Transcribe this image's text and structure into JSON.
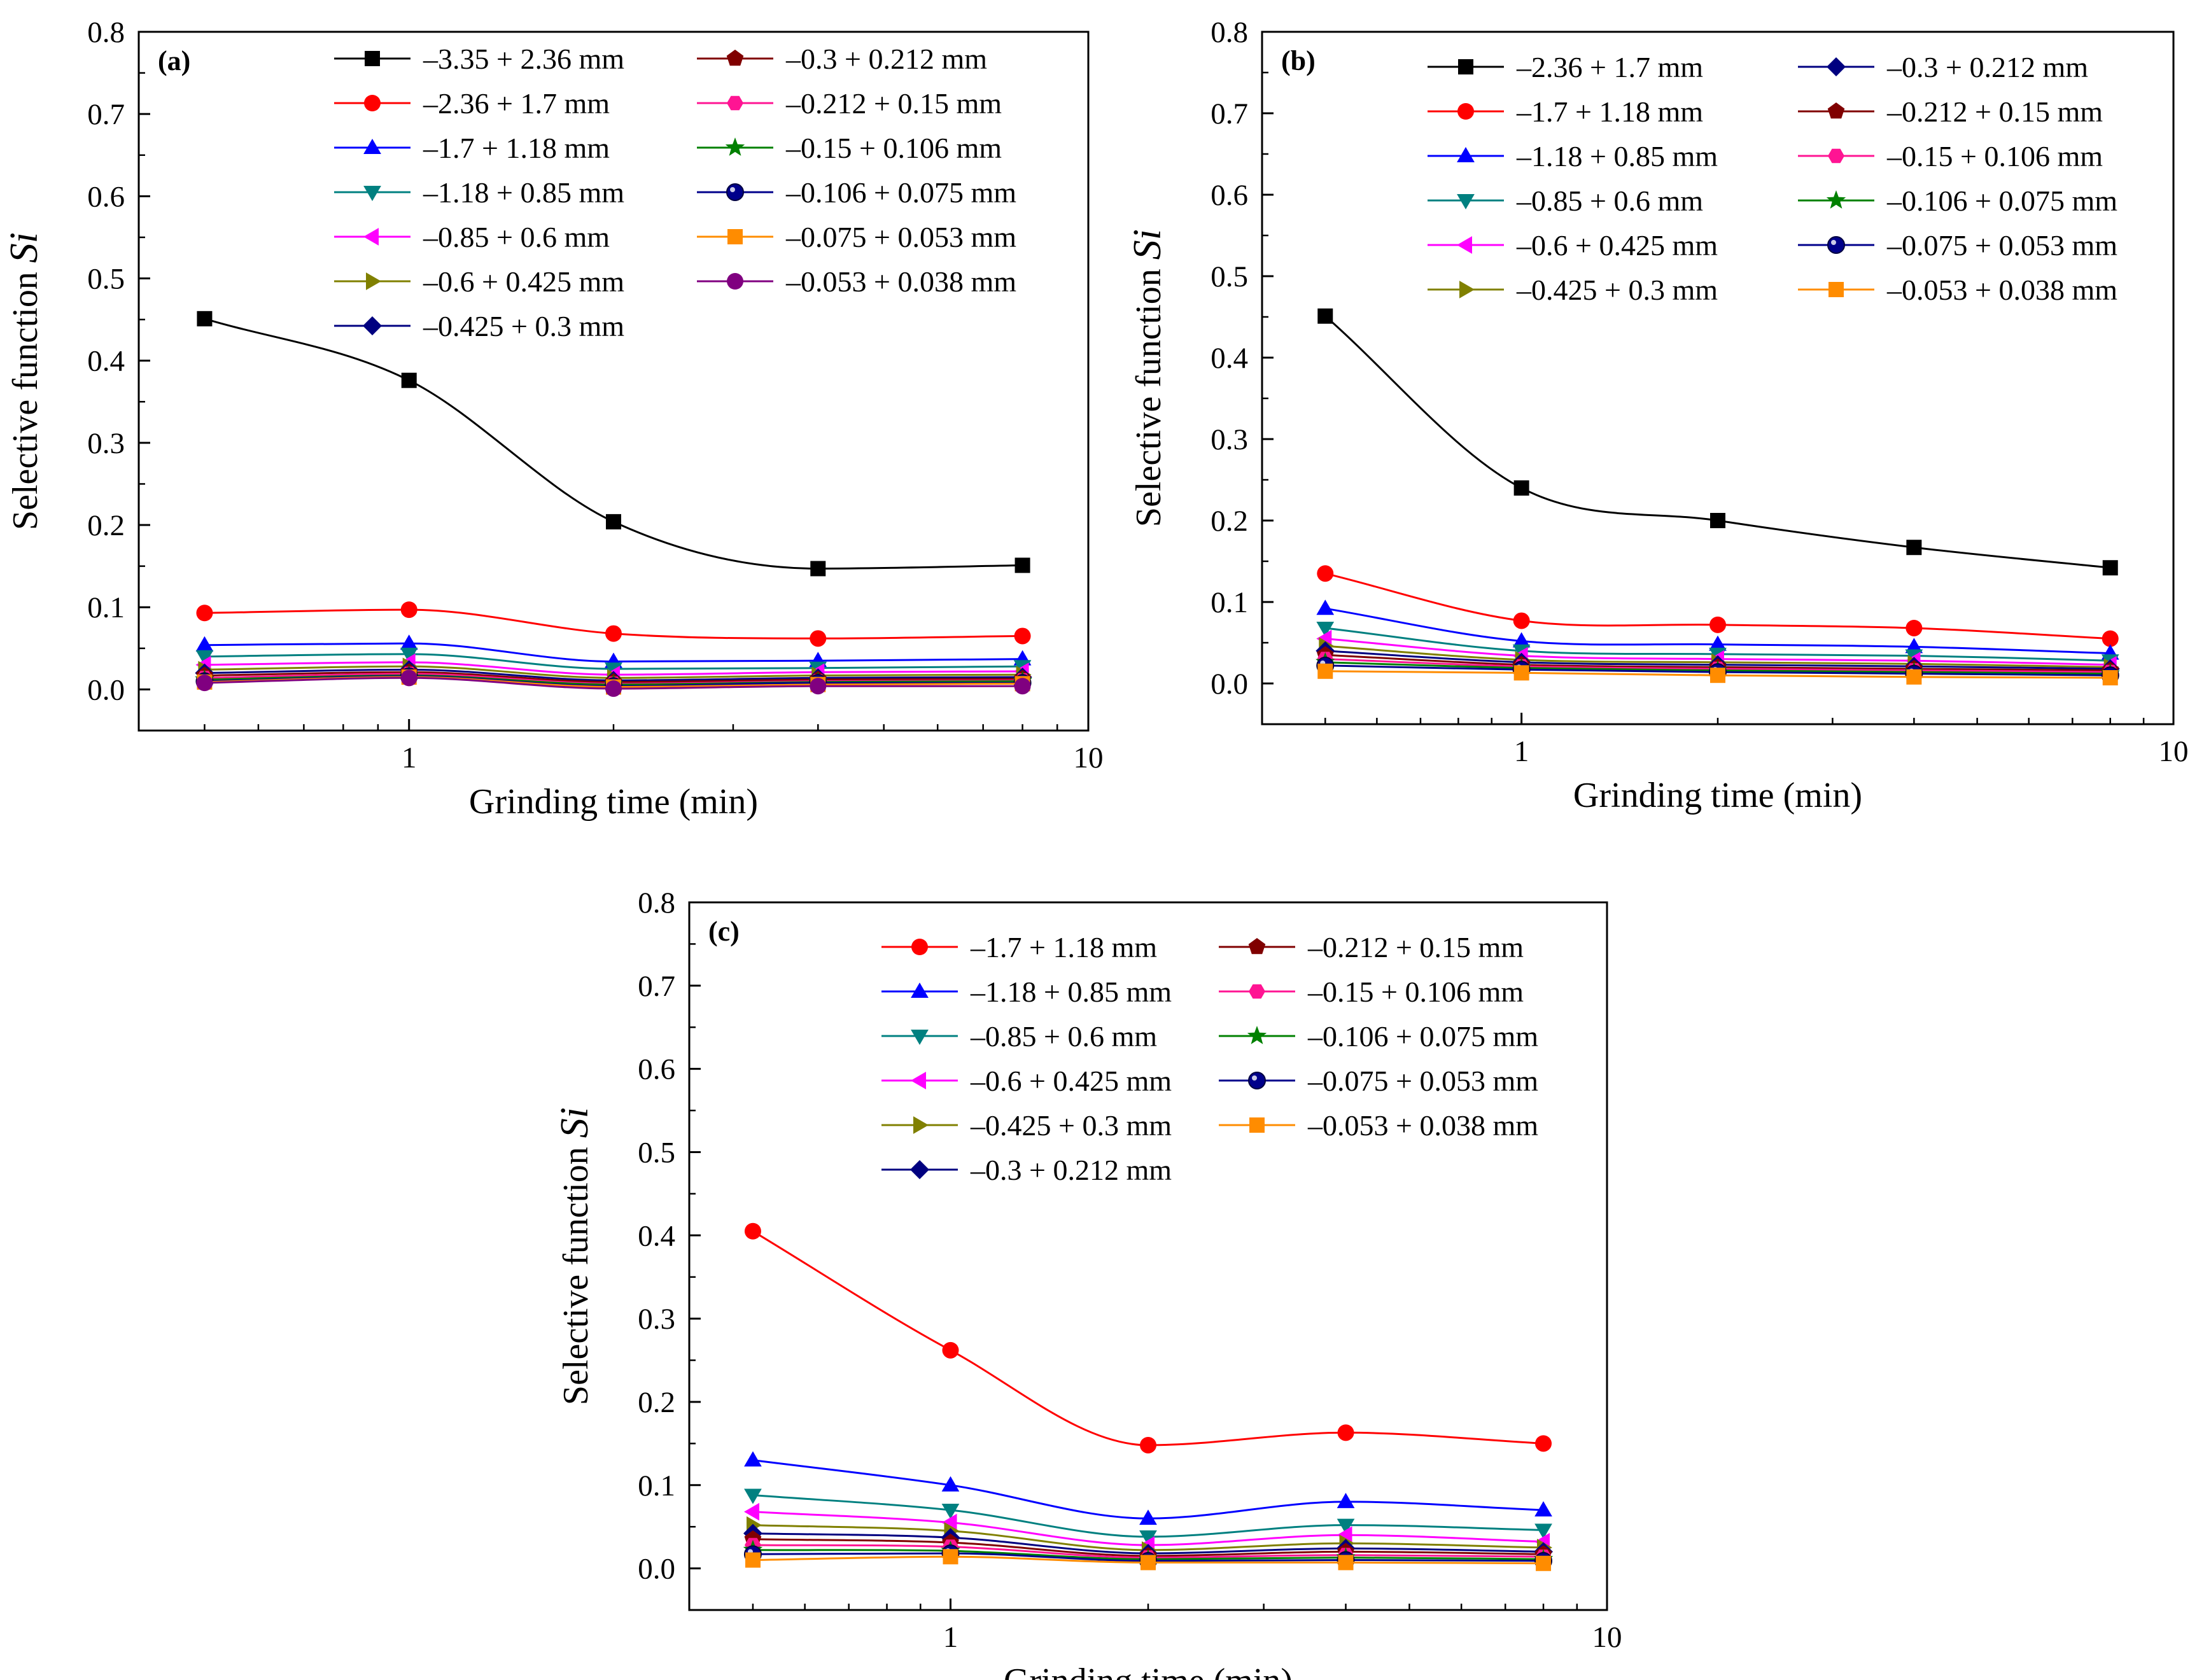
{
  "chart_data": [
    {
      "type": "line",
      "panel_label": "(a)",
      "xscale": "log",
      "xlim": [
        0.4,
        10
      ],
      "ylim": [
        -0.05,
        0.8
      ],
      "xticks": [
        1,
        10
      ],
      "yticks": [
        0.0,
        0.1,
        0.2,
        0.3,
        0.4,
        0.5,
        0.6,
        0.7,
        0.8
      ],
      "xlabel": "Grinding time (min)",
      "ylabel": "Selective function",
      "ylabel_symbol": "Si",
      "legend_position": "top-right",
      "legend_columns": 2,
      "x": [
        0.5,
        1,
        2,
        4,
        8
      ],
      "series": [
        {
          "name": "–3.35 + 2.36 mm",
          "color": "#000000",
          "marker": "square",
          "values": [
            0.451,
            0.376,
            0.204,
            0.147,
            0.151
          ]
        },
        {
          "name": "–2.36 + 1.7 mm",
          "color": "#ff0000",
          "marker": "circle",
          "values": [
            0.093,
            0.097,
            0.068,
            0.062,
            0.065
          ]
        },
        {
          "name": "–1.7 + 1.18 mm",
          "color": "#0000ff",
          "marker": "triangle-up",
          "values": [
            0.054,
            0.056,
            0.034,
            0.035,
            0.037
          ]
        },
        {
          "name": "–1.18 + 0.85 mm",
          "color": "#008080",
          "marker": "triangle-down",
          "values": [
            0.04,
            0.043,
            0.025,
            0.026,
            0.028
          ]
        },
        {
          "name": "–0.85 + 0.6 mm",
          "color": "#ff00ff",
          "marker": "triangle-left",
          "values": [
            0.03,
            0.033,
            0.018,
            0.021,
            0.022
          ]
        },
        {
          "name": "–0.6 + 0.425 mm",
          "color": "#808000",
          "marker": "triangle-right",
          "values": [
            0.024,
            0.028,
            0.014,
            0.017,
            0.018
          ]
        },
        {
          "name": "–0.425 + 0.3 mm",
          "color": "#000080",
          "marker": "diamond",
          "values": [
            0.02,
            0.024,
            0.011,
            0.014,
            0.015
          ]
        },
        {
          "name": "–0.3 + 0.212 mm",
          "color": "#800000",
          "marker": "pentagon",
          "values": [
            0.017,
            0.021,
            0.009,
            0.012,
            0.013
          ]
        },
        {
          "name": "–0.212 + 0.15 mm",
          "color": "#ff1493",
          "marker": "hexagon",
          "values": [
            0.014,
            0.019,
            0.007,
            0.01,
            0.011
          ]
        },
        {
          "name": "–0.15 + 0.106 mm",
          "color": "#008000",
          "marker": "star",
          "values": [
            0.012,
            0.017,
            0.006,
            0.009,
            0.01
          ]
        },
        {
          "name": "–0.106 + 0.075 mm",
          "color": "#00008b",
          "marker": "sphere",
          "values": [
            0.01,
            0.016,
            0.004,
            0.008,
            0.008
          ]
        },
        {
          "name": "–0.075 + 0.053 mm",
          "color": "#ff8c00",
          "marker": "square",
          "values": [
            0.009,
            0.015,
            0.003,
            0.006,
            0.007
          ]
        },
        {
          "name": "–0.053 + 0.038 mm",
          "color": "#800080",
          "marker": "circle",
          "values": [
            0.008,
            0.014,
            0.001,
            0.004,
            0.004
          ]
        }
      ]
    },
    {
      "type": "line",
      "panel_label": "(b)",
      "xscale": "log",
      "xlim": [
        0.4,
        10
      ],
      "ylim": [
        -0.05,
        0.8
      ],
      "xticks": [
        1,
        10
      ],
      "yticks": [
        0.0,
        0.1,
        0.2,
        0.3,
        0.4,
        0.5,
        0.6,
        0.7,
        0.8
      ],
      "xlabel": "Grinding time (min)",
      "ylabel": "Selective function",
      "ylabel_symbol": "Si",
      "legend_position": "top-right",
      "legend_columns": 2,
      "x": [
        0.5,
        1,
        2,
        4,
        8
      ],
      "series": [
        {
          "name": "–2.36 + 1.7 mm",
          "color": "#000000",
          "marker": "square",
          "values": [
            0.451,
            0.24,
            0.2,
            0.167,
            0.142
          ]
        },
        {
          "name": "–1.7 + 1.18 mm",
          "color": "#ff0000",
          "marker": "circle",
          "values": [
            0.135,
            0.077,
            0.072,
            0.068,
            0.055
          ]
        },
        {
          "name": "–1.18 + 0.85 mm",
          "color": "#0000ff",
          "marker": "triangle-up",
          "values": [
            0.092,
            0.052,
            0.048,
            0.045,
            0.037
          ]
        },
        {
          "name": "–0.85 + 0.6 mm",
          "color": "#008080",
          "marker": "triangle-down",
          "values": [
            0.068,
            0.04,
            0.036,
            0.034,
            0.028
          ]
        },
        {
          "name": "–0.6 + 0.425 mm",
          "color": "#ff00ff",
          "marker": "triangle-left",
          "values": [
            0.055,
            0.034,
            0.03,
            0.028,
            0.023
          ]
        },
        {
          "name": "–0.425 + 0.3 mm",
          "color": "#808000",
          "marker": "triangle-right",
          "values": [
            0.046,
            0.029,
            0.026,
            0.024,
            0.02
          ]
        },
        {
          "name": "–0.3 + 0.212 mm",
          "color": "#000080",
          "marker": "diamond",
          "values": [
            0.04,
            0.026,
            0.023,
            0.021,
            0.018
          ]
        },
        {
          "name": "–0.212 + 0.15 mm",
          "color": "#800000",
          "marker": "pentagon",
          "values": [
            0.035,
            0.023,
            0.02,
            0.018,
            0.016
          ]
        },
        {
          "name": "–0.15 + 0.106 mm",
          "color": "#ff1493",
          "marker": "hexagon",
          "values": [
            0.03,
            0.021,
            0.018,
            0.016,
            0.014
          ]
        },
        {
          "name": "–0.106 + 0.075 mm",
          "color": "#008000",
          "marker": "star",
          "values": [
            0.026,
            0.019,
            0.016,
            0.014,
            0.012
          ]
        },
        {
          "name": "–0.075 + 0.053 mm",
          "color": "#00008b",
          "marker": "sphere",
          "values": [
            0.022,
            0.017,
            0.014,
            0.012,
            0.01
          ]
        },
        {
          "name": "–0.053 + 0.038 mm",
          "color": "#ff8c00",
          "marker": "square",
          "values": [
            0.015,
            0.013,
            0.01,
            0.008,
            0.007
          ]
        }
      ]
    },
    {
      "type": "line",
      "panel_label": "(c)",
      "xscale": "log",
      "xlim": [
        0.4,
        10
      ],
      "ylim": [
        -0.05,
        0.8
      ],
      "xticks": [
        1,
        10
      ],
      "yticks": [
        0.0,
        0.1,
        0.2,
        0.3,
        0.4,
        0.5,
        0.6,
        0.7,
        0.8
      ],
      "xlabel": "Grinding time (min)",
      "ylabel": "Selective function",
      "ylabel_symbol": "Si",
      "legend_position": "top-right",
      "legend_columns": 2,
      "x": [
        0.5,
        1,
        2,
        4,
        8
      ],
      "series": [
        {
          "name": "–1.7 + 1.18 mm",
          "color": "#ff0000",
          "marker": "circle",
          "values": [
            0.405,
            0.262,
            0.148,
            0.163,
            0.15
          ]
        },
        {
          "name": "–1.18 + 0.85 mm",
          "color": "#0000ff",
          "marker": "triangle-up",
          "values": [
            0.13,
            0.1,
            0.06,
            0.08,
            0.07
          ]
        },
        {
          "name": "–0.85 + 0.6 mm",
          "color": "#008080",
          "marker": "triangle-down",
          "values": [
            0.088,
            0.07,
            0.038,
            0.052,
            0.046
          ]
        },
        {
          "name": "–0.6 + 0.425 mm",
          "color": "#ff00ff",
          "marker": "triangle-left",
          "values": [
            0.068,
            0.055,
            0.028,
            0.04,
            0.032
          ]
        },
        {
          "name": "–0.425 + 0.3 mm",
          "color": "#808000",
          "marker": "triangle-right",
          "values": [
            0.052,
            0.045,
            0.022,
            0.03,
            0.025
          ]
        },
        {
          "name": "–0.3 + 0.212 mm",
          "color": "#000080",
          "marker": "diamond",
          "values": [
            0.042,
            0.037,
            0.018,
            0.024,
            0.02
          ]
        },
        {
          "name": "–0.212 + 0.15 mm",
          "color": "#800000",
          "marker": "pentagon",
          "values": [
            0.035,
            0.031,
            0.015,
            0.02,
            0.017
          ]
        },
        {
          "name": "–0.15 + 0.106 mm",
          "color": "#ff1493",
          "marker": "hexagon",
          "values": [
            0.028,
            0.026,
            0.013,
            0.016,
            0.014
          ]
        },
        {
          "name": "–0.106 + 0.075 mm",
          "color": "#008000",
          "marker": "star",
          "values": [
            0.022,
            0.021,
            0.011,
            0.013,
            0.011
          ]
        },
        {
          "name": "–0.075 + 0.053 mm",
          "color": "#00008b",
          "marker": "sphere",
          "values": [
            0.017,
            0.018,
            0.009,
            0.01,
            0.009
          ]
        },
        {
          "name": "–0.053 + 0.038 mm",
          "color": "#ff8c00",
          "marker": "square",
          "values": [
            0.01,
            0.014,
            0.007,
            0.007,
            0.006
          ]
        }
      ]
    }
  ]
}
